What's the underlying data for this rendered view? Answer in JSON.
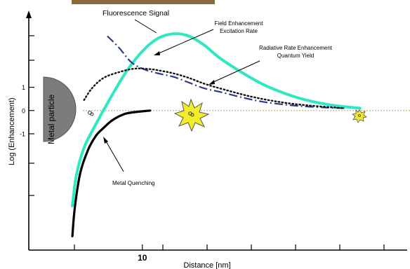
{
  "chart_data": {
    "type": "line",
    "xlabel": "Distance  [nm]",
    "ylabel": "Log (Enhancement)",
    "x_ticks": [
      {
        "x": 10,
        "label": "10"
      }
    ],
    "y_ticks": [
      {
        "y": 1,
        "label": "1"
      },
      {
        "y": 0,
        "label": "0"
      },
      {
        "y": -1,
        "label": "-1"
      }
    ],
    "xlim": [
      -1,
      43
    ],
    "ylim": [
      -6,
      4.3
    ],
    "grid": false,
    "baseline_y": 0,
    "series": [
      {
        "name": "Fluorescence Signal",
        "style": "solid-thick",
        "color": "#2de8c0",
        "x": [
          1,
          1.5,
          2.5,
          4,
          6,
          8,
          10,
          12,
          14,
          16,
          18,
          20,
          23,
          26,
          30,
          34,
          38
        ],
        "y": [
          -4.1,
          -2.8,
          -1.6,
          -0.6,
          0.6,
          1.7,
          2.55,
          3.1,
          3.3,
          3.2,
          2.8,
          2.25,
          1.6,
          1.05,
          0.55,
          0.25,
          0.1
        ]
      },
      {
        "name": "Field Enhancement Excitation Rate",
        "style": "dash-dot",
        "color": "#2c3a8c",
        "x": [
          5.5,
          7,
          8.5,
          10,
          12,
          14,
          16,
          18,
          20,
          23,
          26,
          30,
          34,
          36
        ],
        "y": [
          3.2,
          2.7,
          2.1,
          1.8,
          1.6,
          1.45,
          1.2,
          0.95,
          0.8,
          0.55,
          0.35,
          0.2,
          0.12,
          0.1
        ]
      },
      {
        "name": "Radiative Rate Enhancement Quantum Yield",
        "style": "dotted",
        "color": "#111111",
        "x": [
          2.5,
          3.5,
          5,
          7,
          9,
          11,
          12.5,
          14,
          16,
          18,
          20,
          24,
          28,
          32,
          36
        ],
        "y": [
          0.45,
          0.95,
          1.4,
          1.65,
          1.8,
          1.78,
          1.7,
          1.6,
          1.4,
          1.15,
          0.95,
          0.6,
          0.35,
          0.2,
          0.1
        ]
      },
      {
        "name": "Metal Quenching",
        "style": "solid-thick",
        "color": "#000000",
        "x": [
          1,
          1.3,
          2,
          3,
          4,
          5,
          6,
          7,
          8,
          9.5,
          11
        ],
        "y": [
          -5.4,
          -4.2,
          -2.7,
          -1.7,
          -1.1,
          -0.75,
          -0.45,
          -0.25,
          -0.12,
          -0.05,
          0
        ]
      }
    ],
    "annotations": [
      {
        "text": "Fluorescence Signal",
        "style": "plain"
      },
      {
        "text_lines": [
          "Field Enhancement",
          "Excitation Rate"
        ]
      },
      {
        "text_lines": [
          "Radiative Rate Enhancement",
          "Quantum Yield"
        ]
      },
      {
        "text": "Metal Quenching"
      },
      {
        "text": "Metal particle",
        "style": "rotated"
      }
    ]
  }
}
